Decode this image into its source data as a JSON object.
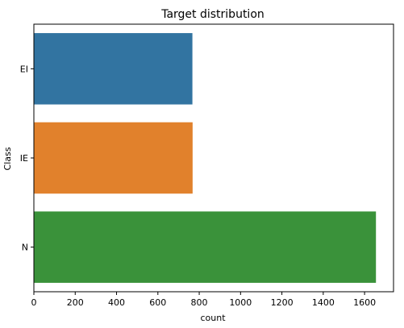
{
  "chart_data": {
    "type": "bar",
    "orientation": "horizontal",
    "title": "Target distribution",
    "xlabel": "count",
    "ylabel": "Class",
    "categories": [
      "EI",
      "IE",
      "N"
    ],
    "values": [
      767,
      768,
      1655
    ],
    "colors": [
      "#3274a1",
      "#e1812c",
      "#3a923a"
    ],
    "xlim": [
      0,
      1740
    ],
    "xticks": [
      0,
      200,
      400,
      600,
      800,
      1000,
      1200,
      1400,
      1600
    ],
    "grid": false,
    "legend": "none"
  }
}
